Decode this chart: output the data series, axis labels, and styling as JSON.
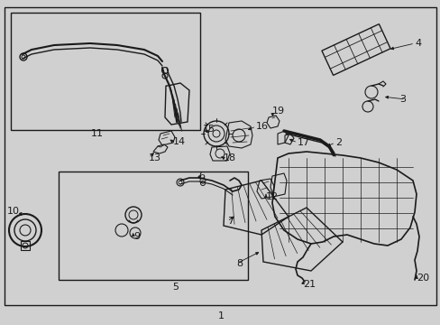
{
  "bg_color": "#d0d0d0",
  "white": "#e8e8e8",
  "black": "#1a1a1a",
  "figsize": [
    4.89,
    3.6
  ],
  "dpi": 100
}
